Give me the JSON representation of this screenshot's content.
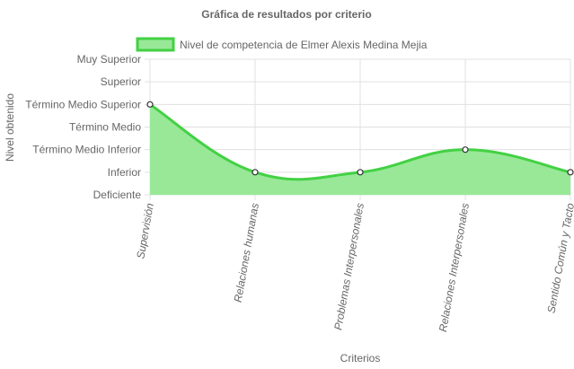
{
  "chart_data": {
    "type": "area",
    "title": "Gráfica de resultados por criterio",
    "xlabel": "Criterios",
    "ylabel": "Nivel obtenido",
    "y_levels": [
      "Deficiente",
      "Inferior",
      "Término Medio Inferior",
      "Término Medio",
      "Término Medio Superior",
      "Superior",
      "Muy Superior"
    ],
    "categories": [
      "Supervisión",
      "Relaciones humanas",
      "Problemas Interpersonales",
      "Relaciones Interpersonales",
      "Sentido Común y Tacto"
    ],
    "series": [
      {
        "name": "Nivel de competencia de Elmer Alexis Medina Mejia",
        "values": [
          4,
          1,
          1,
          2,
          1
        ]
      }
    ],
    "ylim": [
      0,
      6
    ],
    "grid": true,
    "legend": "top",
    "colors": {
      "line": "#43d143",
      "fill": "#98e898",
      "point_fill": "#ffffff",
      "point_stroke": "#333333"
    }
  }
}
